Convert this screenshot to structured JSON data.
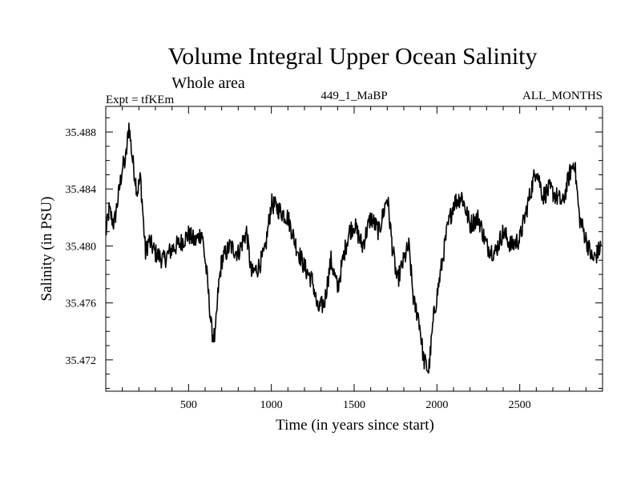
{
  "chart_data": {
    "type": "line",
    "title": "Volume Integral Upper Ocean Salinity",
    "subtitle": "Whole area",
    "header_left": "Expt = tfKEm",
    "header_center": "449_1_MaBP",
    "header_right": "ALL_MONTHS",
    "xlabel": "Time (in years since start)",
    "ylabel": "Salinity (in PSU)",
    "xlim": [
      0,
      3000
    ],
    "ylim": [
      35.4698,
      35.4898
    ],
    "xticks": [
      "500",
      "1000",
      "1500",
      "2000",
      "2500"
    ],
    "yticks": [
      "35.472",
      "35.476",
      "35.480",
      "35.484",
      "35.488"
    ],
    "grid": false,
    "line_color": "#000000",
    "series": [
      {
        "x": [
          0,
          20,
          50,
          80,
          100,
          120,
          140,
          160,
          190,
          210,
          240,
          260,
          300,
          350,
          400,
          450,
          500,
          540,
          580,
          610,
          640,
          660,
          680,
          700,
          750,
          800,
          850,
          880,
          920,
          960,
          1000,
          1050,
          1100,
          1150,
          1200,
          1250,
          1280,
          1320,
          1360,
          1400,
          1440,
          1470,
          1500,
          1550,
          1600,
          1650,
          1700,
          1730,
          1760,
          1800,
          1830,
          1860,
          1890,
          1920,
          1950,
          1980,
          2020,
          2060,
          2100,
          2150,
          2200,
          2250,
          2300,
          2350,
          2400,
          2450,
          2500,
          2550,
          2600,
          2640,
          2680,
          2720,
          2760,
          2800,
          2830,
          2860,
          2900,
          2940,
          2970,
          2990
        ],
        "y": [
          35.4808,
          35.4825,
          35.4815,
          35.4838,
          35.4855,
          35.486,
          35.4885,
          35.4862,
          35.4838,
          35.4848,
          35.4795,
          35.4804,
          35.4795,
          35.479,
          35.4798,
          35.4802,
          35.4808,
          35.4803,
          35.481,
          35.478,
          35.474,
          35.4735,
          35.477,
          35.479,
          35.48,
          35.4795,
          35.481,
          35.478,
          35.4785,
          35.4795,
          35.483,
          35.4825,
          35.482,
          35.48,
          35.4785,
          35.4775,
          35.4755,
          35.476,
          35.479,
          35.477,
          35.4795,
          35.481,
          35.4815,
          35.48,
          35.482,
          35.481,
          35.4835,
          35.48,
          35.4775,
          35.479,
          35.48,
          35.476,
          35.475,
          35.472,
          35.4712,
          35.475,
          35.478,
          35.481,
          35.483,
          35.4835,
          35.4815,
          35.482,
          35.48,
          35.4795,
          35.481,
          35.48,
          35.4805,
          35.483,
          35.4855,
          35.4835,
          35.484,
          35.4835,
          35.483,
          35.485,
          35.486,
          35.482,
          35.4805,
          35.479,
          35.4795,
          35.48
        ]
      }
    ]
  }
}
